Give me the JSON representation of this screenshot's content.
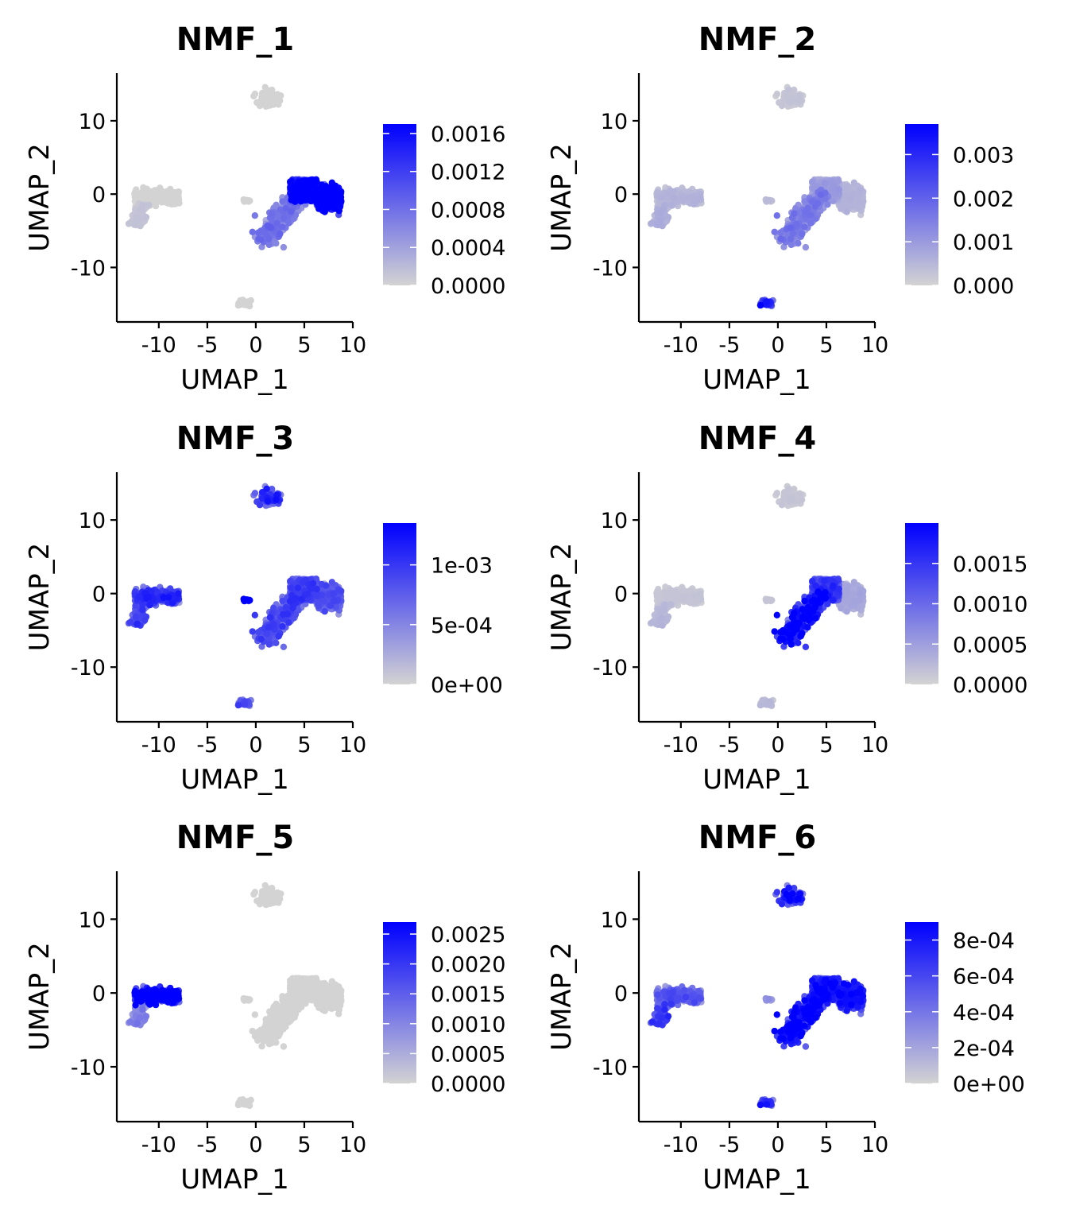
{
  "chart_data": [
    {
      "type": "scatter",
      "title": "NMF_1",
      "xlabel": "UMAP_1",
      "ylabel": "UMAP_2",
      "xlim": [
        -14,
        10
      ],
      "ylim": [
        -17,
        16.5
      ],
      "xticks": [
        -10,
        -5,
        0,
        5,
        10
      ],
      "xtick_labels": [
        "-10",
        "-5",
        "0",
        "5",
        "10"
      ],
      "yticks": [
        -10,
        0,
        10
      ],
      "ytick_labels": [
        "-10",
        "0",
        "10"
      ],
      "colorbar": {
        "low_color": "#d3d3d3",
        "high_color": "#0000ff",
        "min": 0,
        "max": 0.0017,
        "ticks": [
          0,
          0.0004,
          0.0008,
          0.0012,
          0.0016
        ],
        "tick_labels": [
          "0.0000",
          "0.0004",
          "0.0008",
          "0.0012",
          "0.0016"
        ]
      },
      "expression": {
        "left_cluster": 0.0,
        "left_tail": 0.0001,
        "top_cluster": 0.0,
        "bottom_cluster": 0.0,
        "tiny_cluster": 0.0,
        "main_lower": 0.0006,
        "main_body": 0.0014,
        "main_right": 0.0017
      }
    },
    {
      "type": "scatter",
      "title": "NMF_2",
      "xlabel": "UMAP_1",
      "ylabel": "UMAP_2",
      "xlim": [
        -14,
        10
      ],
      "ylim": [
        -17,
        16.5
      ],
      "xticks": [
        -10,
        -5,
        0,
        5,
        10
      ],
      "xtick_labels": [
        "-10",
        "-5",
        "0",
        "5",
        "10"
      ],
      "yticks": [
        -10,
        0,
        10
      ],
      "ytick_labels": [
        "-10",
        "0",
        "10"
      ],
      "colorbar": {
        "low_color": "#d3d3d3",
        "high_color": "#0000ff",
        "min": 0,
        "max": 0.0037,
        "ticks": [
          0,
          0.001,
          0.002,
          0.003
        ],
        "tick_labels": [
          "0.000",
          "0.001",
          "0.002",
          "0.003"
        ]
      },
      "expression": {
        "left_cluster": 0.0004,
        "left_tail": 0.0005,
        "top_cluster": 0.0002,
        "bottom_cluster": 0.0025,
        "tiny_cluster": 0.0003,
        "main_lower": 0.0012,
        "main_body": 0.0007,
        "main_right": 0.0004
      }
    },
    {
      "type": "scatter",
      "title": "NMF_3",
      "xlabel": "UMAP_1",
      "ylabel": "UMAP_2",
      "xlim": [
        -14,
        10
      ],
      "ylim": [
        -17,
        16.5
      ],
      "xticks": [
        -10,
        -5,
        0,
        5,
        10
      ],
      "xtick_labels": [
        "-10",
        "-5",
        "0",
        "5",
        "10"
      ],
      "yticks": [
        -10,
        0,
        10
      ],
      "ytick_labels": [
        "-10",
        "0",
        "10"
      ],
      "colorbar": {
        "low_color": "#d3d3d3",
        "high_color": "#0000ff",
        "min": 0,
        "max": 0.00135,
        "ticks": [
          0,
          0.0005,
          0.001
        ],
        "tick_labels": [
          "0e+00",
          "5e-04",
          "1e-03"
        ]
      },
      "expression": {
        "left_cluster": 0.0008,
        "left_tail": 0.0007,
        "top_cluster": 0.0008,
        "bottom_cluster": 0.0007,
        "tiny_cluster": 0.0012,
        "main_lower": 0.0007,
        "main_body": 0.0007,
        "main_right": 0.0006
      }
    },
    {
      "type": "scatter",
      "title": "NMF_4",
      "xlabel": "UMAP_1",
      "ylabel": "UMAP_2",
      "xlim": [
        -14,
        10
      ],
      "ylim": [
        -17,
        16.5
      ],
      "xticks": [
        -10,
        -5,
        0,
        5,
        10
      ],
      "xtick_labels": [
        "-10",
        "-5",
        "0",
        "5",
        "10"
      ],
      "yticks": [
        -10,
        0,
        10
      ],
      "ytick_labels": [
        "-10",
        "0",
        "10"
      ],
      "colorbar": {
        "low_color": "#d3d3d3",
        "high_color": "#0000ff",
        "min": 0,
        "max": 0.002,
        "ticks": [
          0,
          0.0005,
          0.001,
          0.0015
        ],
        "tick_labels": [
          "0.0000",
          "0.0005",
          "0.0010",
          "0.0015"
        ]
      },
      "expression": {
        "left_cluster": 0.0001,
        "left_tail": 0.0002,
        "top_cluster": 0.0001,
        "bottom_cluster": 0.0002,
        "tiny_cluster": 0.0001,
        "main_lower": 0.0015,
        "main_body": 0.0011,
        "main_right": 0.0003
      }
    },
    {
      "type": "scatter",
      "title": "NMF_5",
      "xlabel": "UMAP_1",
      "ylabel": "UMAP_2",
      "xlim": [
        -14,
        10
      ],
      "ylim": [
        -17,
        16.5
      ],
      "xticks": [
        -10,
        -5,
        0,
        5,
        10
      ],
      "xtick_labels": [
        "-10",
        "-5",
        "0",
        "5",
        "10"
      ],
      "yticks": [
        -10,
        0,
        10
      ],
      "ytick_labels": [
        "-10",
        "0",
        "10"
      ],
      "colorbar": {
        "low_color": "#d3d3d3",
        "high_color": "#0000ff",
        "min": 0,
        "max": 0.0027,
        "ticks": [
          0,
          0.0005,
          0.001,
          0.0015,
          0.002,
          0.0025
        ],
        "tick_labels": [
          "0.0000",
          "0.0005",
          "0.0010",
          "0.0015",
          "0.0020",
          "0.0025"
        ]
      },
      "expression": {
        "left_cluster": 0.0024,
        "left_tail": 0.0008,
        "top_cluster": 0.0,
        "bottom_cluster": 0.0,
        "tiny_cluster": 0.0,
        "main_lower": 0.0,
        "main_body": 0.0,
        "main_right": 0.0
      }
    },
    {
      "type": "scatter",
      "title": "NMF_6",
      "xlabel": "UMAP_1",
      "ylabel": "UMAP_2",
      "xlim": [
        -14,
        10
      ],
      "ylim": [
        -17,
        16.5
      ],
      "xticks": [
        -10,
        -5,
        0,
        5,
        10
      ],
      "xtick_labels": [
        "-10",
        "-5",
        "0",
        "5",
        "10"
      ],
      "yticks": [
        -10,
        0,
        10
      ],
      "ytick_labels": [
        "-10",
        "0",
        "10"
      ],
      "colorbar": {
        "low_color": "#d3d3d3",
        "high_color": "#0000ff",
        "min": 0,
        "max": 0.0009,
        "ticks": [
          0,
          0.0002,
          0.0004,
          0.0006,
          0.0008
        ],
        "tick_labels": [
          "0e+00",
          "2e-04",
          "4e-04",
          "6e-04",
          "8e-04"
        ]
      },
      "expression": {
        "left_cluster": 0.0004,
        "left_tail": 0.0005,
        "top_cluster": 0.0006,
        "bottom_cluster": 0.0006,
        "tiny_cluster": 0.0002,
        "main_lower": 0.0007,
        "main_body": 0.0006,
        "main_right": 0.0006
      }
    }
  ]
}
